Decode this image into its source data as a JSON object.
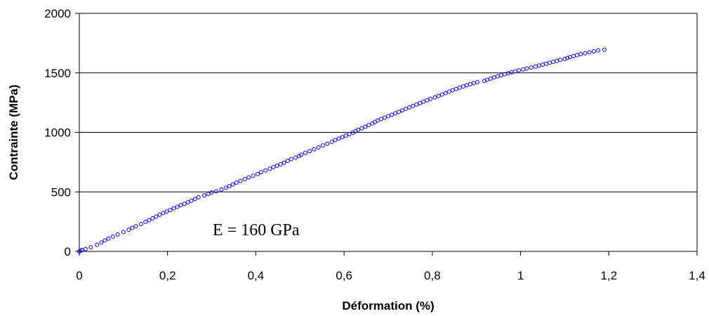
{
  "chart_data": {
    "type": "scatter",
    "xlabel": "Déformation (%)",
    "ylabel": "Contrainte (MPa)",
    "xlim": [
      0,
      1.4
    ],
    "ylim": [
      0,
      2000
    ],
    "x_ticks": [
      0,
      0.2,
      0.4,
      0.6,
      0.8,
      1,
      1.2,
      1.4
    ],
    "x_tick_labels": [
      "0",
      "0,2",
      "0,4",
      "0,6",
      "0,8",
      "1",
      "1,2",
      "1,4"
    ],
    "y_ticks": [
      0,
      500,
      1000,
      1500,
      2000
    ],
    "y_tick_labels": [
      "0",
      "500",
      "1000",
      "1500",
      "2000"
    ],
    "grid": "horizontal",
    "annotation": "E = 160 GPa",
    "marker_color": "#0000cc",
    "series": [
      {
        "x": [
          0,
          0.003,
          0.006,
          0.014,
          0.026,
          0.04,
          0.05,
          0.058,
          0.066,
          0.076,
          0.087,
          0.1,
          0.112,
          0.12,
          0.128,
          0.14,
          0.15,
          0.158,
          0.166,
          0.174,
          0.182,
          0.19,
          0.198,
          0.206,
          0.214,
          0.222,
          0.23,
          0.238,
          0.246,
          0.254,
          0.262,
          0.27,
          0.283,
          0.292,
          0.3,
          0.31,
          0.322,
          0.332,
          0.34,
          0.348,
          0.356,
          0.365,
          0.375,
          0.384,
          0.394,
          0.404,
          0.412,
          0.422,
          0.432,
          0.44,
          0.448,
          0.456,
          0.464,
          0.472,
          0.48,
          0.49,
          0.498,
          0.503,
          0.512,
          0.522,
          0.532,
          0.542,
          0.552,
          0.562,
          0.572,
          0.58,
          0.588,
          0.596,
          0.604,
          0.612,
          0.62,
          0.626,
          0.632,
          0.64,
          0.648,
          0.656,
          0.664,
          0.67,
          0.676,
          0.684,
          0.692,
          0.7,
          0.708,
          0.716,
          0.724,
          0.732,
          0.74,
          0.748,
          0.756,
          0.764,
          0.772,
          0.78,
          0.788,
          0.796,
          0.806,
          0.814,
          0.822,
          0.83,
          0.838,
          0.846,
          0.854,
          0.862,
          0.87,
          0.878,
          0.886,
          0.894,
          0.902,
          0.918,
          0.924,
          0.932,
          0.94,
          0.948,
          0.956,
          0.964,
          0.972,
          0.98,
          0.988,
          0.996,
          1.006,
          1.014,
          1.024,
          1.034,
          1.042,
          1.05,
          1.058,
          1.066,
          1.074,
          1.082,
          1.09,
          1.1,
          1.106,
          1.112,
          1.12,
          1.128,
          1.136,
          1.146,
          1.156,
          1.166,
          1.176,
          1.19
        ],
        "y": [
          0,
          5,
          12,
          20,
          35,
          55,
          75,
          92,
          108,
          125,
          142,
          162,
          182,
          198,
          212,
          230,
          248,
          262,
          278,
          292,
          308,
          322,
          335,
          348,
          362,
          375,
          388,
          400,
          412,
          425,
          440,
          455,
          470,
          482,
          495,
          505,
          520,
          535,
          548,
          562,
          578,
          592,
          608,
          622,
          635,
          650,
          665,
          680,
          695,
          708,
          720,
          732,
          745,
          760,
          775,
          788,
          800,
          812,
          828,
          842,
          858,
          874,
          890,
          905,
          920,
          935,
          948,
          960,
          972,
          985,
          998,
          1010,
          1022,
          1035,
          1048,
          1062,
          1075,
          1088,
          1100,
          1112,
          1124,
          1136,
          1148,
          1160,
          1172,
          1185,
          1198,
          1210,
          1222,
          1234,
          1246,
          1258,
          1270,
          1282,
          1294,
          1306,
          1318,
          1330,
          1342,
          1354,
          1365,
          1376,
          1386,
          1396,
          1405,
          1414,
          1422,
          1432,
          1442,
          1452,
          1462,
          1471,
          1480,
          1489,
          1497,
          1505,
          1513,
          1521,
          1529,
          1537,
          1545,
          1553,
          1561,
          1569,
          1577,
          1585,
          1593,
          1601,
          1609,
          1617,
          1625,
          1633,
          1641,
          1649,
          1657,
          1665,
          1673,
          1681,
          1689,
          1695
        ]
      }
    ]
  }
}
